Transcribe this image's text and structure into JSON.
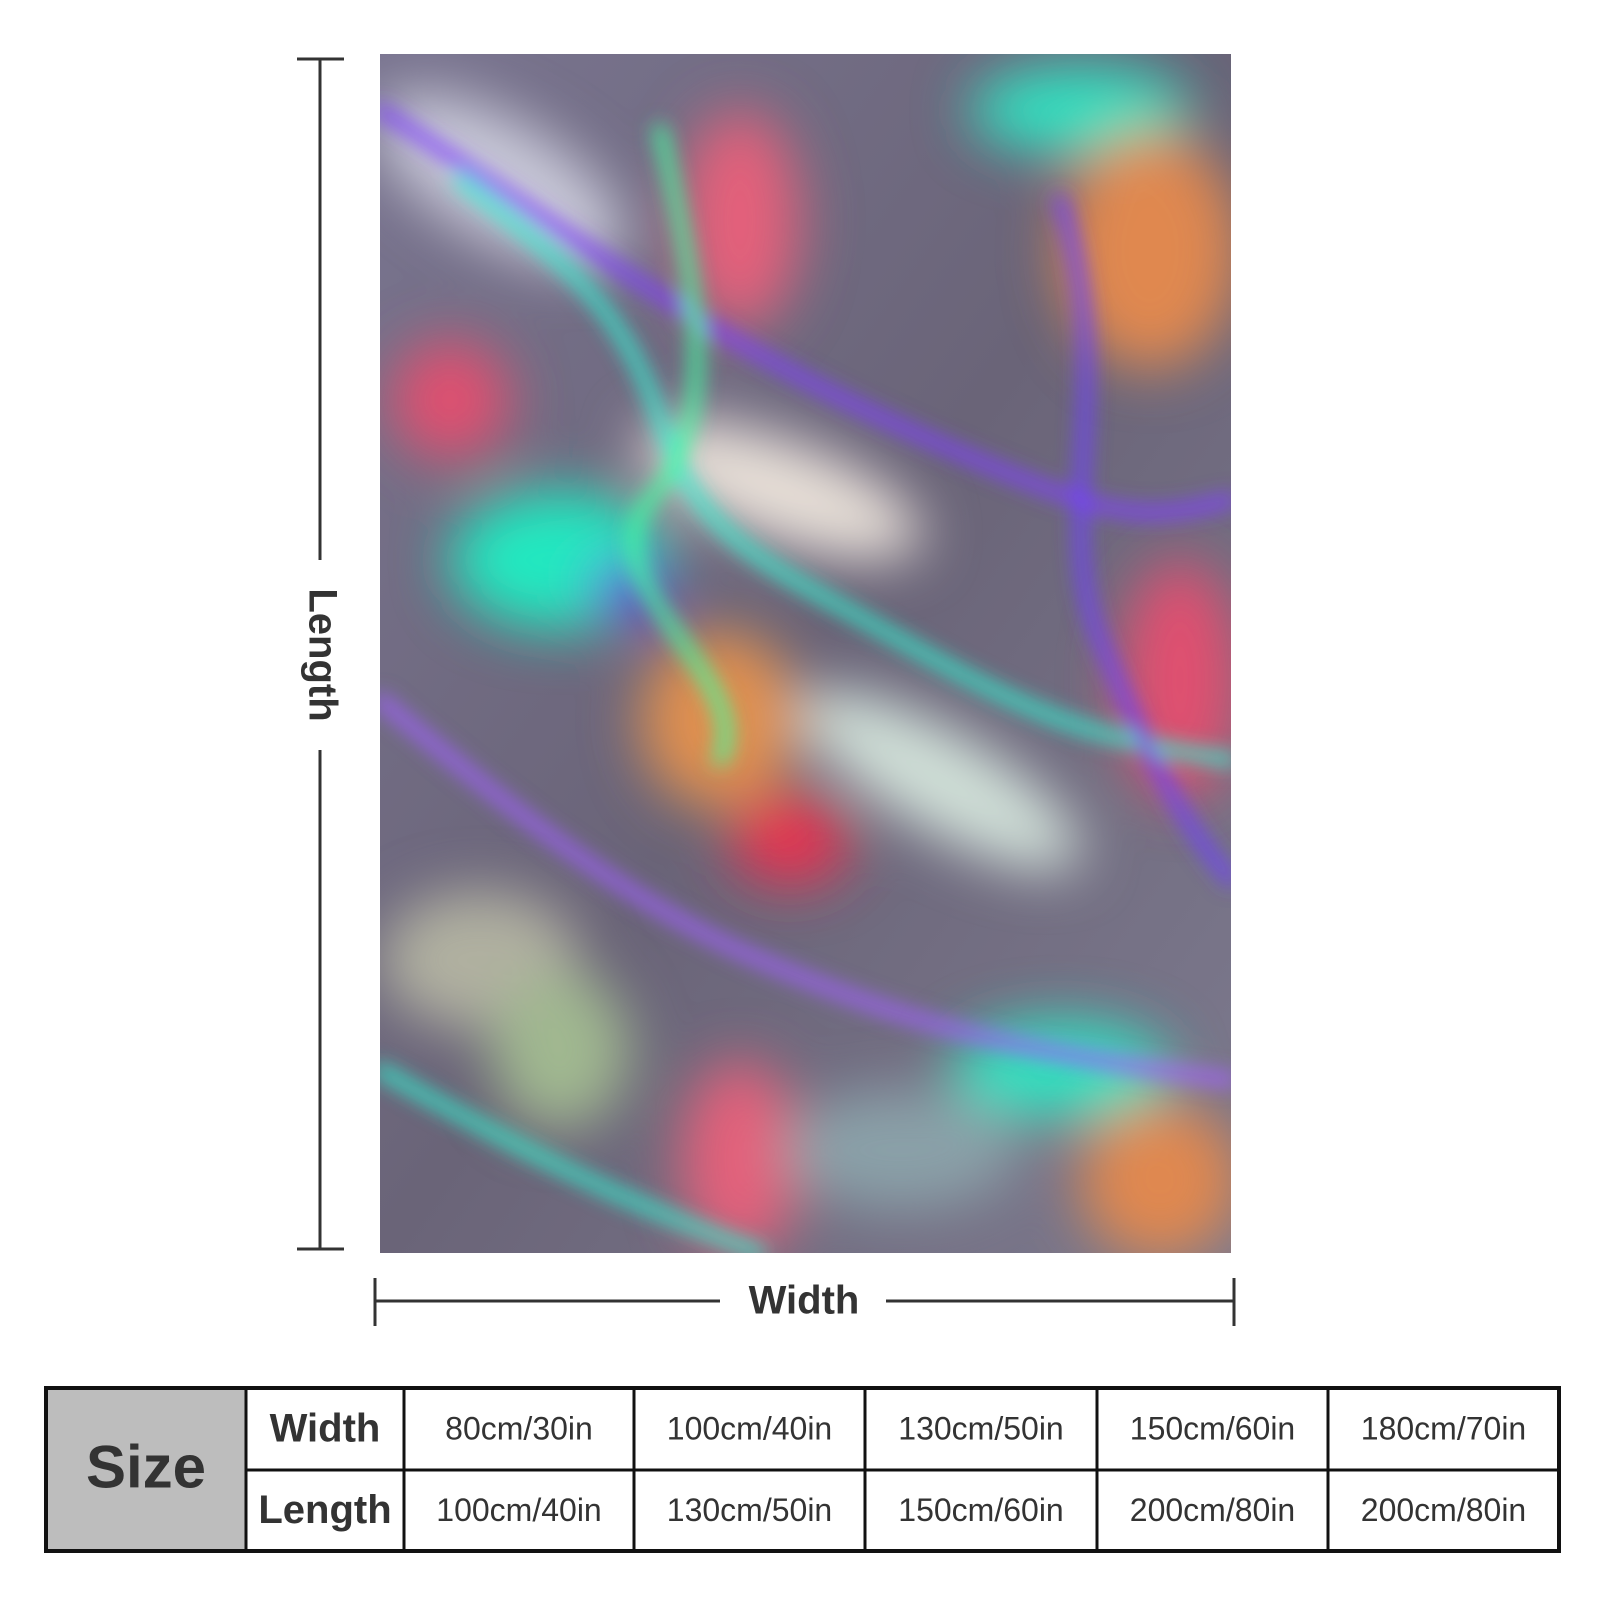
{
  "labels": {
    "length": "Length",
    "width": "Width"
  },
  "table": {
    "corner": "Size",
    "rows": [
      {
        "header": "Width",
        "cells": [
          "80cm/30in",
          "100cm/40in",
          "130cm/50in",
          "150cm/60in",
          "180cm/70in"
        ]
      },
      {
        "header": "Length",
        "cells": [
          "100cm/40in",
          "130cm/50in",
          "150cm/60in",
          "200cm/80in",
          "200cm/80in"
        ]
      }
    ]
  }
}
